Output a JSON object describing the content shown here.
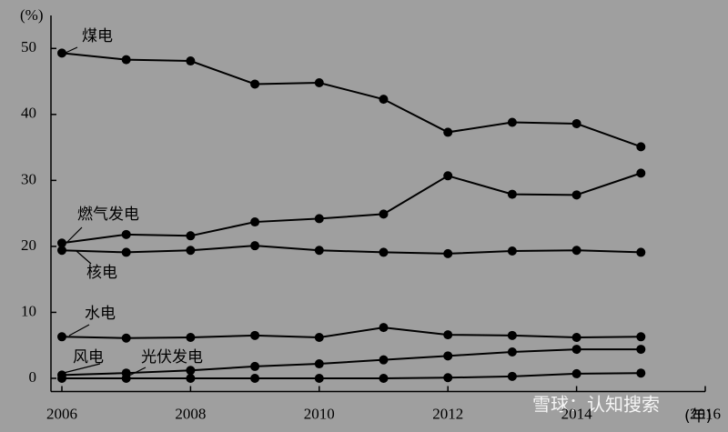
{
  "chart_data": {
    "type": "line",
    "ylabel": "(%)",
    "xlabel": "(年)",
    "watermark": "雪球：认知搜索",
    "x": [
      2006,
      2007,
      2008,
      2009,
      2010,
      2011,
      2012,
      2013,
      2014,
      2015
    ],
    "xlim": [
      2006,
      2016
    ],
    "xticks": [
      2006,
      2008,
      2010,
      2012,
      2014,
      2016
    ],
    "ylim": [
      -2,
      55
    ],
    "yticks": [
      0,
      10,
      20,
      30,
      40,
      50
    ],
    "series": [
      {
        "name": "煤电",
        "color": "#000000",
        "values": [
          49.3,
          48.3,
          48.1,
          44.6,
          44.8,
          42.3,
          37.3,
          38.8,
          38.6,
          35.1
        ]
      },
      {
        "name": "燃气发电",
        "color": "#000000",
        "values": [
          20.5,
          21.8,
          21.6,
          23.7,
          24.2,
          24.9,
          30.7,
          27.9,
          27.8,
          31.1
        ]
      },
      {
        "name": "核电",
        "color": "#000000",
        "values": [
          19.4,
          19.1,
          19.4,
          20.1,
          19.4,
          19.1,
          18.9,
          19.3,
          19.4,
          19.1
        ]
      },
      {
        "name": "水电",
        "color": "#000000",
        "values": [
          6.3,
          6.1,
          6.2,
          6.5,
          6.2,
          7.7,
          6.6,
          6.5,
          6.2,
          6.3
        ]
      },
      {
        "name": "风电",
        "color": "#000000",
        "values": [
          0.5,
          0.8,
          1.2,
          1.8,
          2.2,
          2.8,
          3.4,
          4.0,
          4.4,
          4.4
        ]
      },
      {
        "name": "光伏发电",
        "color": "#000000",
        "values": [
          0,
          0,
          0,
          0,
          0,
          0,
          0.1,
          0.3,
          0.7,
          0.8
        ]
      }
    ]
  }
}
